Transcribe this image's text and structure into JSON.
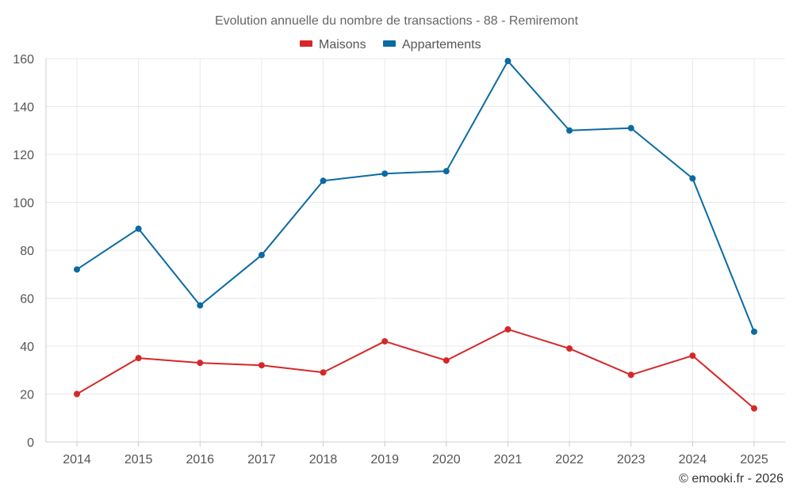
{
  "chart_data": {
    "type": "line",
    "title": "Evolution annuelle du nombre de transactions - 88 - Remiremont",
    "categories": [
      "2014",
      "2015",
      "2016",
      "2017",
      "2018",
      "2019",
      "2020",
      "2021",
      "2022",
      "2023",
      "2024",
      "2025"
    ],
    "series": [
      {
        "name": "Maisons",
        "color": "#d62728",
        "values": [
          20,
          35,
          33,
          32,
          29,
          42,
          34,
          47,
          39,
          28,
          36,
          14
        ]
      },
      {
        "name": "Appartements",
        "color": "#0b6aa2",
        "values": [
          72,
          89,
          57,
          78,
          109,
          112,
          113,
          159,
          130,
          131,
          110,
          46
        ]
      }
    ],
    "yticks": [
      0,
      20,
      40,
      60,
      80,
      100,
      120,
      140,
      160
    ],
    "ylim": [
      0,
      160
    ],
    "xlabel": "",
    "ylabel": "",
    "grid": true,
    "legend_position": "top-center"
  },
  "credit": "© emooki.fr - 2026"
}
